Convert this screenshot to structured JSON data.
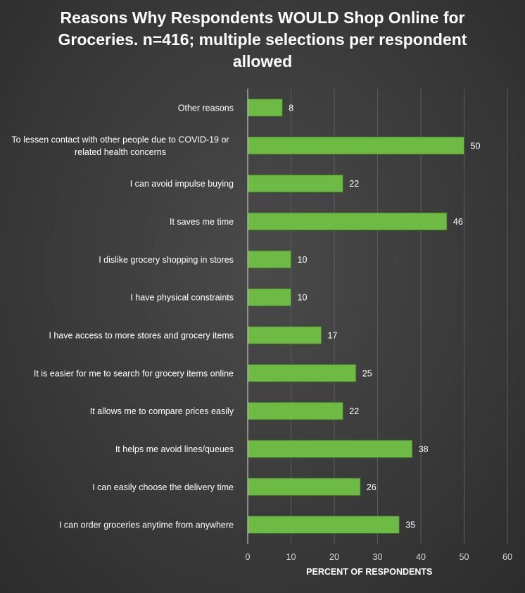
{
  "chart_data": {
    "type": "bar",
    "orientation": "horizontal",
    "title": "Reasons Why Respondents WOULD Shop Online for Groceries. n=416; multiple selections per respondent allowed",
    "xlabel": "PERCENT OF RESPONDENTS",
    "ylabel": "",
    "xlim": [
      0,
      60
    ],
    "ticks": [
      0,
      10,
      20,
      30,
      40,
      50,
      60
    ],
    "grid": true,
    "legend": "none",
    "bar_color": "#6dbb45",
    "categories": [
      [
        "Other reasons"
      ],
      [
        "To lessen contact with other people due to COVID-19 or",
        "related health concerns"
      ],
      [
        "I can avoid impulse buying"
      ],
      [
        "It saves me time"
      ],
      [
        "I dislike grocery shopping in stores"
      ],
      [
        "I have physical constraints"
      ],
      [
        "I have access to more stores and grocery items"
      ],
      [
        "It is easier for me to search for grocery items online"
      ],
      [
        "It allows me to compare prices easily"
      ],
      [
        "It helps me avoid lines/queues"
      ],
      [
        "I can easily choose the delivery time"
      ],
      [
        "I can order groceries anytime from anywhere"
      ]
    ],
    "values": [
      8,
      50,
      22,
      46,
      10,
      10,
      17,
      25,
      22,
      38,
      26,
      35
    ]
  }
}
